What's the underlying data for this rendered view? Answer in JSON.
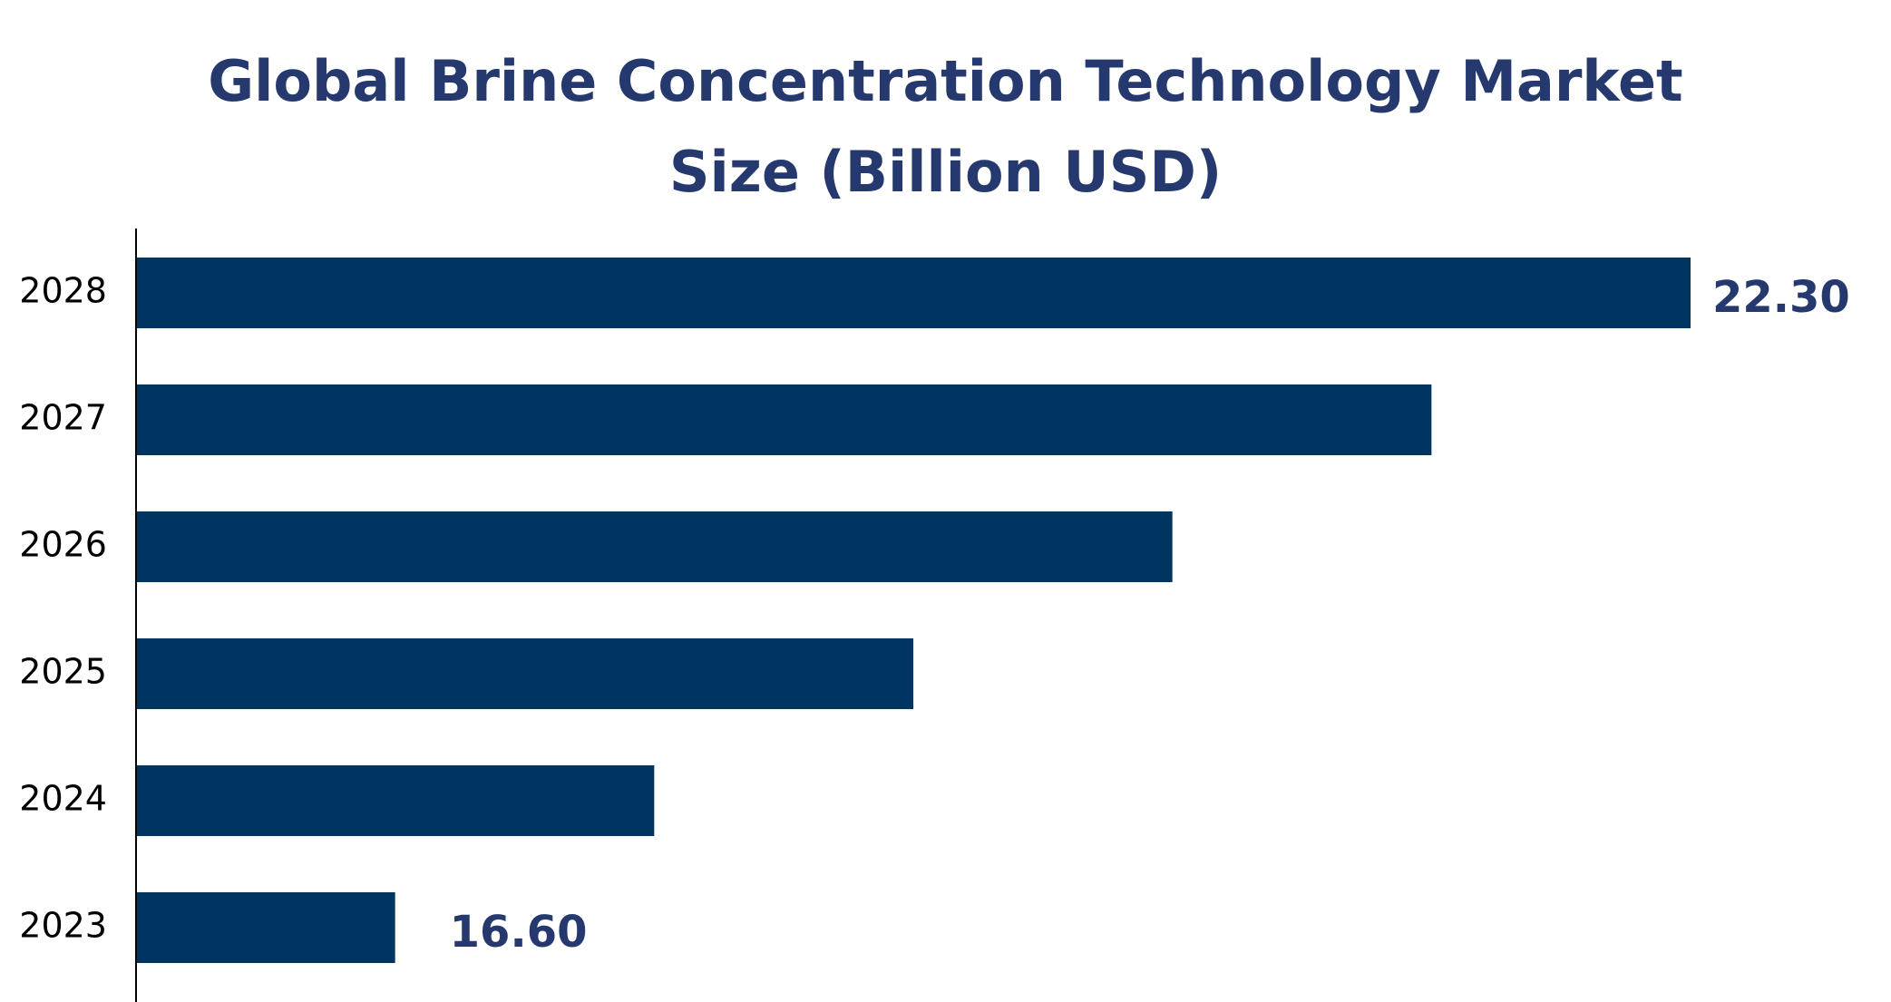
{
  "chart_data": {
    "type": "bar",
    "orientation": "horizontal",
    "title_lines": [
      "Global Brine Concentration Technology Market",
      "Size (Billion USD)"
    ],
    "categories": [
      "2028",
      "2027",
      "2026",
      "2025",
      "2024",
      "2023"
    ],
    "values": [
      22.3,
      21.16,
      20.02,
      18.88,
      17.74,
      16.6
    ],
    "data_labels": [
      {
        "category": "2028",
        "text": "22.30"
      },
      {
        "category": "2023",
        "text": "16.60"
      }
    ],
    "xlim": [
      15.46,
      22.3
    ],
    "grid": false,
    "legend": "none",
    "colors": {
      "bar": "#003461",
      "title": "#25396f",
      "label": "#25396f",
      "axis": "#000000",
      "tick_text": "#000000"
    }
  }
}
